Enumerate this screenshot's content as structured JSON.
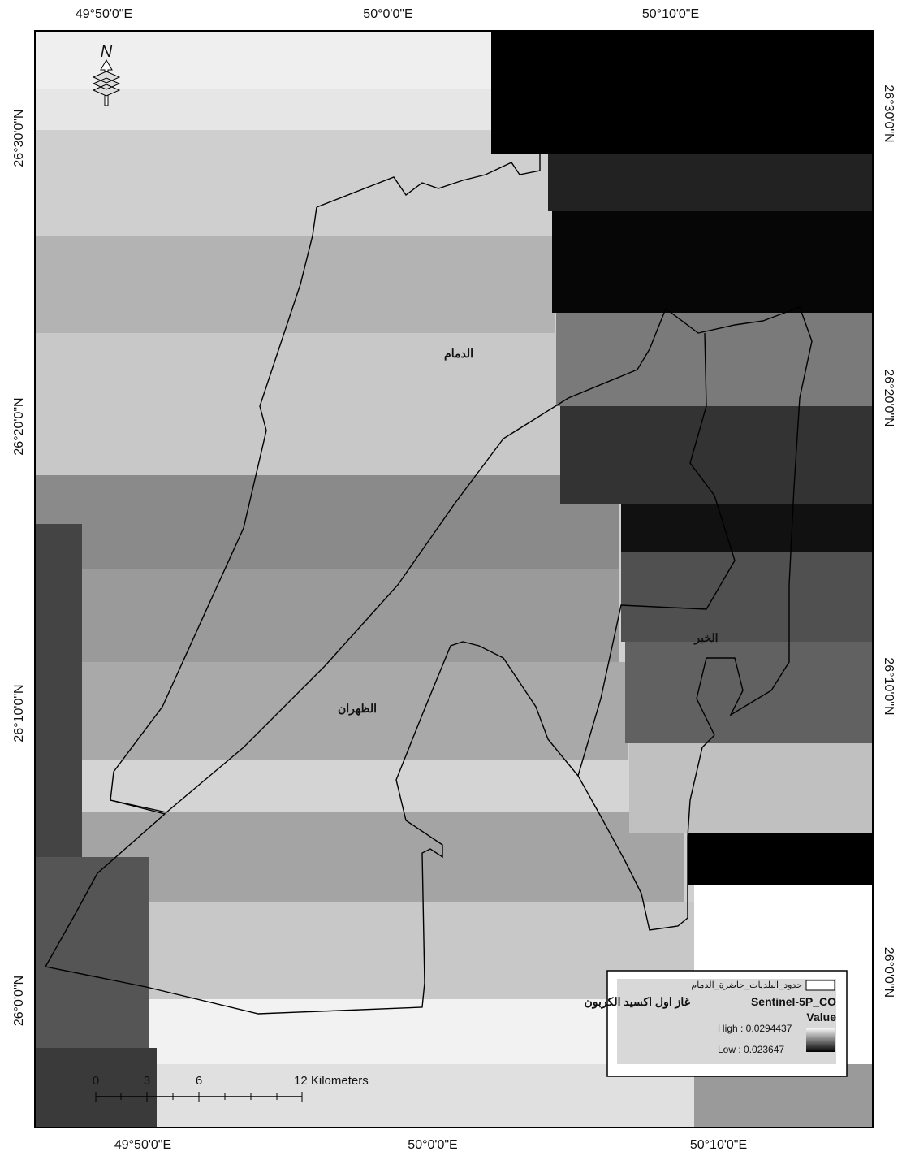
{
  "graticule": {
    "top": [
      "49°50'0\"E",
      "50°0'0\"E",
      "50°10'0\"E"
    ],
    "bottom": [
      "49°50'0\"E",
      "50°0'0\"E",
      "50°10'0\"E"
    ],
    "left": [
      "26°30'0\"N",
      "26°20'0\"N",
      "26°10'0\"N",
      "26°0'0\"N"
    ],
    "right": [
      "26°30'0\"N",
      "26°20'0\"N",
      "26°10'0\"N",
      "26°0'0\"N"
    ]
  },
  "north_arrow": "N",
  "places": [
    "الدمام",
    "الظهران",
    "الخبر"
  ],
  "legend": {
    "boundary": "حدود_البلديات_حاضرة_الدمام",
    "layer": "Sentinel-5P_CO",
    "layer_ar": "غاز اول اكسيد الكربون",
    "field": "Value",
    "high": "High : 0.0294437",
    "low": "Low : 0.023647"
  },
  "scale_bar": {
    "ticks": [
      0,
      3,
      6
    ],
    "end": "12 Kilometers"
  }
}
